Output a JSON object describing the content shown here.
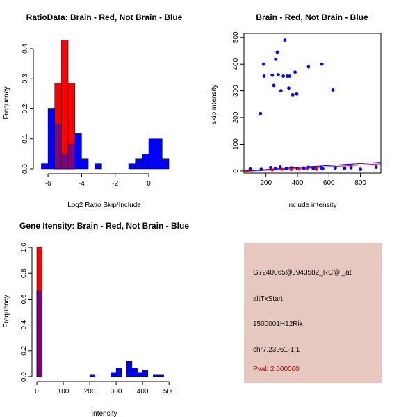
{
  "colors": {
    "red": "#ff0000",
    "blue": "#0000ff",
    "overlap": "#800080",
    "info_bg": "#e7c8c0",
    "pval": "#b30000"
  },
  "info": {
    "probe_id": "G7240065@J943582_RC@i_at",
    "event_type": "altTxStart",
    "gene": "1500001H12Rik",
    "location": "chr7.23961-1.1",
    "pval": "Pval: 2.000000"
  },
  "chart_data": [
    {
      "id": "ratio",
      "type": "bar",
      "title": "RatioData: Brain - Red, Not Brain - Blue",
      "xlabel": "Log2 Ratio Skip/Include",
      "ylabel": "Frequency",
      "xlim": [
        -6.5,
        1.2
      ],
      "ylim": [
        0,
        0.43
      ],
      "xticks": [
        -6,
        -4,
        -2,
        0
      ],
      "yticks": [
        0,
        0.1,
        0.2,
        0.3,
        0.4
      ],
      "ytick_labels": [
        "0.0",
        "0.1",
        "0.2",
        "0.3",
        "0.4"
      ],
      "bin_width": 0.4,
      "blue_bins": [
        {
          "x0": -6.4,
          "v": 0.017
        },
        {
          "x0": -6.0,
          "v": 0.2
        },
        {
          "x0": -5.6,
          "v": 0.15
        },
        {
          "x0": -5.2,
          "v": 0.05
        },
        {
          "x0": -4.8,
          "v": 0.083
        },
        {
          "x0": -4.4,
          "v": 0.117
        },
        {
          "x0": -4.0,
          "v": 0.033
        },
        {
          "x0": -3.2,
          "v": 0.017
        },
        {
          "x0": -1.2,
          "v": 0.017
        },
        {
          "x0": -0.8,
          "v": 0.033
        },
        {
          "x0": -0.4,
          "v": 0.05
        },
        {
          "x0": 0.0,
          "v": 0.1
        },
        {
          "x0": 0.4,
          "v": 0.1
        },
        {
          "x0": 0.8,
          "v": 0.033
        }
      ],
      "red_bins": [
        {
          "x0": -5.6,
          "v": 0.286
        },
        {
          "x0": -5.2,
          "v": 0.429
        },
        {
          "x0": -4.8,
          "v": 0.286
        }
      ]
    },
    {
      "id": "scatter",
      "type": "scatter",
      "title": "Brain - Red, Not Brain - Blue",
      "xlabel": "include intensity",
      "ylabel": "skip intensity",
      "xlim": [
        60,
        930
      ],
      "ylim": [
        -8,
        515
      ],
      "xticks": [
        200,
        400,
        600,
        800
      ],
      "yticks": [
        0,
        100,
        200,
        300,
        400,
        500
      ],
      "blue_points": [
        [
          165,
          215
        ],
        [
          185,
          400
        ],
        [
          188,
          355
        ],
        [
          240,
          358
        ],
        [
          250,
          320
        ],
        [
          262,
          418
        ],
        [
          272,
          445
        ],
        [
          278,
          360
        ],
        [
          295,
          300
        ],
        [
          310,
          355
        ],
        [
          320,
          490
        ],
        [
          335,
          355
        ],
        [
          345,
          310
        ],
        [
          350,
          355
        ],
        [
          370,
          285
        ],
        [
          385,
          370
        ],
        [
          395,
          288
        ],
        [
          470,
          390
        ],
        [
          555,
          400
        ],
        [
          625,
          303
        ],
        [
          100,
          7
        ],
        [
          170,
          6
        ],
        [
          230,
          12
        ],
        [
          260,
          9
        ],
        [
          290,
          14
        ],
        [
          330,
          8
        ],
        [
          360,
          11
        ],
        [
          400,
          8
        ],
        [
          440,
          10
        ],
        [
          470,
          13
        ],
        [
          500,
          9
        ],
        [
          520,
          7
        ],
        [
          550,
          12
        ],
        [
          560,
          8
        ],
        [
          640,
          11
        ],
        [
          700,
          10
        ],
        [
          740,
          12
        ],
        [
          800,
          6
        ],
        [
          900,
          14
        ]
      ],
      "red_points": [
        [
          240,
          4
        ],
        [
          300,
          6
        ],
        [
          360,
          5
        ],
        [
          410,
          7
        ],
        [
          460,
          8
        ],
        [
          520,
          6
        ]
      ],
      "lines": [
        {
          "color": "blue",
          "x": [
            60,
            930
          ],
          "y": [
            0,
            32
          ]
        },
        {
          "color": "red",
          "x": [
            60,
            930
          ],
          "y": [
            -2,
            26
          ]
        }
      ]
    },
    {
      "id": "intensity",
      "type": "bar",
      "title": "Gene Itensity: Brain - Red, Not Brain - Blue",
      "xlabel": "Intensity",
      "ylabel": "Frequency",
      "xlim": [
        0,
        510
      ],
      "ylim": [
        0,
        1.0
      ],
      "xticks": [
        0,
        100,
        200,
        300,
        400,
        500
      ],
      "yticks": [
        0,
        0.2,
        0.4,
        0.6,
        0.8,
        1.0
      ],
      "ytick_labels": [
        "0.0",
        "0.2",
        "0.4",
        "0.6",
        "0.8",
        "1.0"
      ],
      "bin_width": 20,
      "blue_bins": [
        {
          "x0": 0,
          "v": 0.667
        },
        {
          "x0": 200,
          "v": 0.017
        },
        {
          "x0": 280,
          "v": 0.033
        },
        {
          "x0": 300,
          "v": 0.067
        },
        {
          "x0": 340,
          "v": 0.117
        },
        {
          "x0": 360,
          "v": 0.067
        },
        {
          "x0": 380,
          "v": 0.033
        },
        {
          "x0": 400,
          "v": 0.05
        },
        {
          "x0": 440,
          "v": 0.017
        },
        {
          "x0": 460,
          "v": 0.017
        }
      ],
      "red_bins": [
        {
          "x0": 0,
          "v": 1.0
        }
      ]
    }
  ]
}
